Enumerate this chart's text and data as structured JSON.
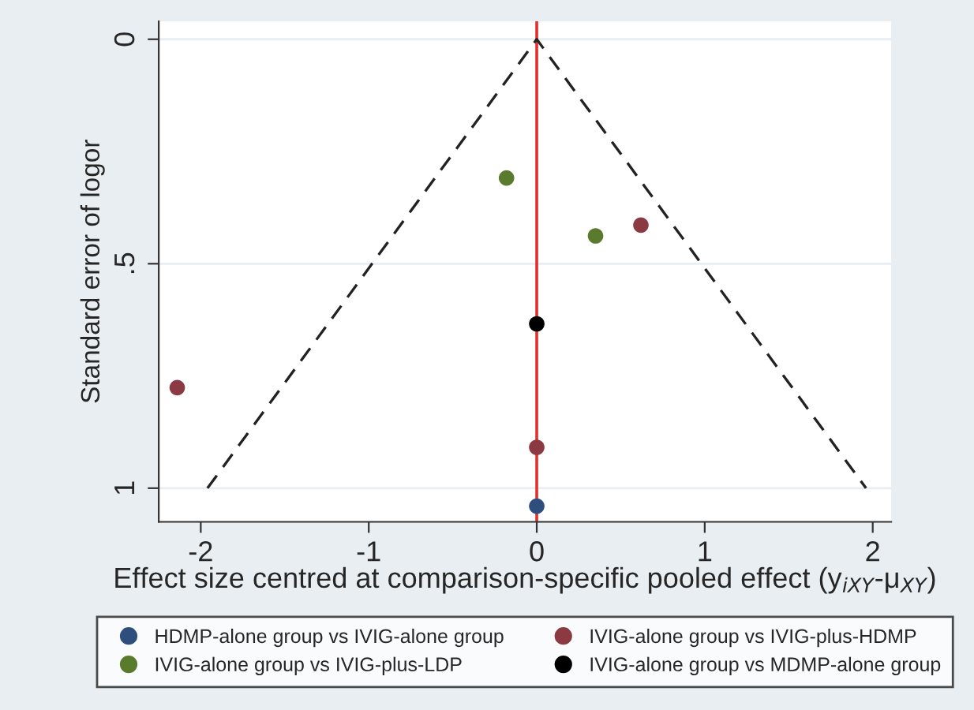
{
  "chart_data": {
    "type": "scatter",
    "xlabel": "Effect size centred at comparison-specific pooled effect (y$_{iXY}$-μ$_{XY}$)",
    "ylabel": "Standard error of logor",
    "xlim": [
      -2.25,
      2.11
    ],
    "xticks": [
      -2,
      -1,
      0,
      1,
      2
    ],
    "ylim": [
      1.075,
      -0.04
    ],
    "yticks": [
      0,
      {
        "value": 0.5,
        "label": ".5"
      },
      1
    ],
    "grid": "y",
    "legend": "bottom",
    "marker": "circle",
    "ref_lines": [
      {
        "axis": "x",
        "value": 0,
        "color": "#e03030",
        "line_style": "solid"
      }
    ],
    "series": [
      {
        "name": "HDMP-alone group vs IVIG-alone group",
        "color": "#2e4f7e",
        "x": [
          0
        ],
        "values": [
          1.04
        ]
      },
      {
        "name": "IVIG-alone group vs IVIG-plus-HDMP",
        "color": "#8b3a44",
        "x": [
          -2.14,
          0,
          0.62
        ],
        "values": [
          0.776,
          0.909,
          0.414
        ]
      },
      {
        "name": "IVIG-alone group vs IVIG-plus-LDP",
        "color": "#5a7a2e",
        "x": [
          -0.18,
          0.35
        ],
        "values": [
          0.309,
          0.438
        ]
      },
      {
        "name": "IVIG-alone group vs MDMP-alone group",
        "color": "#000000",
        "x": [
          0
        ],
        "values": [
          0.634
        ]
      },
      {
        "type": "line",
        "color": "#222222",
        "line_style": "dashed",
        "marker": "none",
        "x": [
          -1.96,
          0,
          1.96
        ],
        "values": [
          1.0,
          0,
          1.0
        ]
      }
    ]
  }
}
